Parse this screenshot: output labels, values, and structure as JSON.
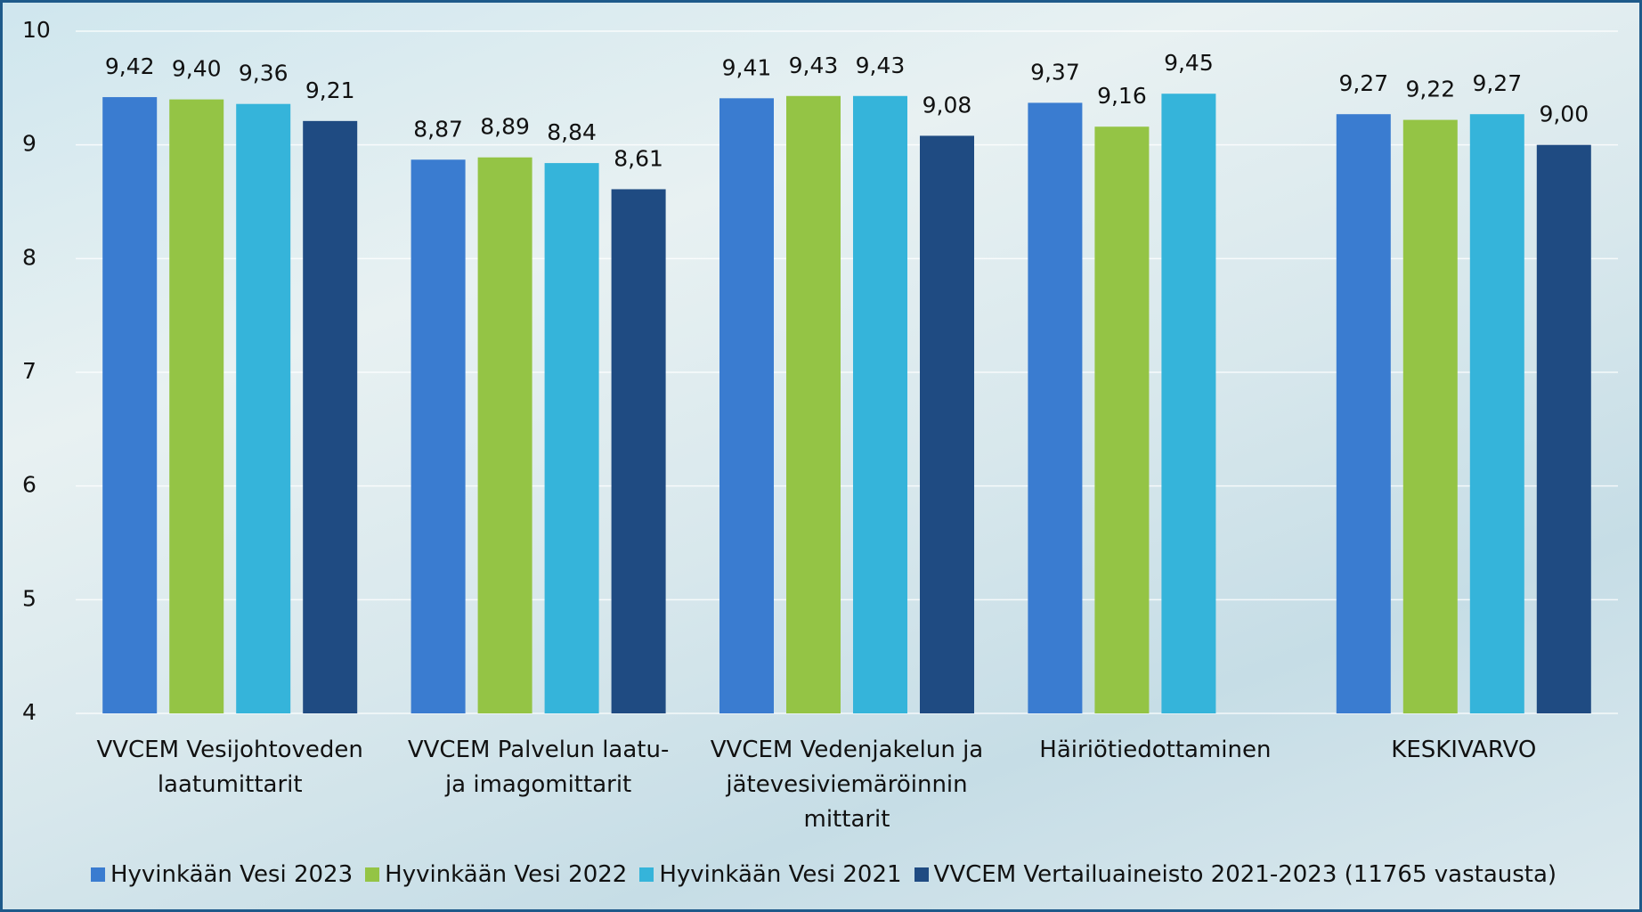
{
  "chart_data": {
    "type": "bar",
    "categories": [
      "VVCEM Vesijohtoveden laatumittarit",
      "VVCEM Palvelun laatu- ja imagomittarit",
      "VVCEM Vedenjakelun ja jätevesiviemäröinnin mittarit",
      "Häiriötiedottaminen",
      "KESKIVARVO"
    ],
    "series": [
      {
        "name": "Hyvinkään Vesi 2023",
        "color": "#3a7cd0",
        "values": [
          9.42,
          8.87,
          9.41,
          9.37,
          9.27
        ],
        "value_labels": [
          "9,42",
          "8,87",
          "9,41",
          "9,37",
          "9,27"
        ]
      },
      {
        "name": "Hyvinkään Vesi 2022",
        "color": "#94c445",
        "values": [
          9.4,
          8.89,
          9.43,
          9.16,
          9.22
        ],
        "value_labels": [
          "9,40",
          "8,89",
          "9,43",
          "9,16",
          "9,22"
        ]
      },
      {
        "name": "Hyvinkään Vesi 2021",
        "color": "#35b4da",
        "values": [
          9.36,
          8.84,
          9.43,
          9.45,
          9.27
        ],
        "value_labels": [
          "9,36",
          "8,84",
          "9,43",
          "9,45",
          "9,27"
        ]
      },
      {
        "name": "VVCEM Vertailuaineisto 2021-2023 (11765 vastausta)",
        "color": "#1f4b82",
        "values": [
          9.21,
          8.61,
          9.08,
          null,
          9.0
        ],
        "value_labels": [
          "9,21",
          "8,61",
          "9,08",
          null,
          "9,00"
        ]
      }
    ],
    "ylim": [
      4,
      10
    ],
    "yticks": [
      4,
      5,
      6,
      7,
      8,
      9,
      10
    ],
    "grid": true
  }
}
